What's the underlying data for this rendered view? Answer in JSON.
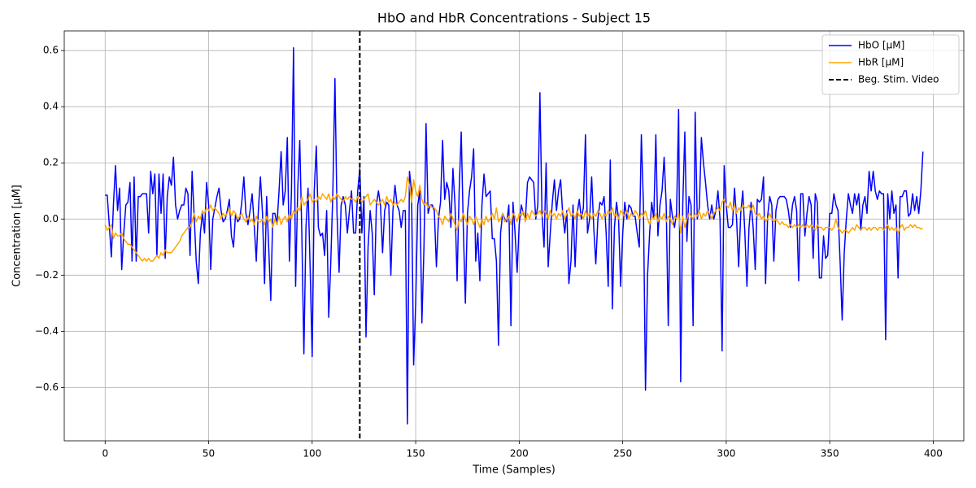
{
  "chart_data": {
    "type": "line",
    "title": "HbO and HbR Concentrations - Subject 15",
    "xlabel": "Time (Samples)",
    "ylabel": "Concentration [μM]",
    "x": [
      0,
      1,
      2,
      3,
      4,
      5,
      6,
      7,
      8,
      9,
      10,
      11,
      12,
      13,
      14,
      15,
      16,
      17,
      18,
      19,
      20,
      21,
      22,
      23,
      24,
      25,
      26,
      27,
      28,
      29,
      30,
      31,
      32,
      33,
      34,
      35,
      36,
      37,
      38,
      39,
      40,
      41,
      42,
      43,
      44,
      45,
      46,
      47,
      48,
      49,
      50,
      51,
      52,
      53,
      54,
      55,
      56,
      57,
      58,
      59,
      60,
      61,
      62,
      63,
      64,
      65,
      66,
      67,
      68,
      69,
      70,
      71,
      72,
      73,
      74,
      75,
      76,
      77,
      78,
      79,
      80,
      81,
      82,
      83,
      84,
      85,
      86,
      87,
      88,
      89,
      90,
      91,
      92,
      93,
      94,
      95,
      96,
      97,
      98,
      99,
      100,
      101,
      102,
      103,
      104,
      105,
      106,
      107,
      108,
      109,
      110,
      111,
      112,
      113,
      114,
      115,
      116,
      117,
      118,
      119,
      120,
      121,
      122,
      123,
      124,
      125,
      126,
      127,
      128,
      129,
      130,
      131,
      132,
      133,
      134,
      135,
      136,
      137,
      138,
      139,
      140,
      141,
      142,
      143,
      144,
      145,
      146,
      147,
      148,
      149,
      150,
      151,
      152,
      153,
      154,
      155,
      156,
      157,
      158,
      159,
      160,
      161,
      162,
      163,
      164,
      165,
      166,
      167,
      168,
      169,
      170,
      171,
      172,
      173,
      174,
      175,
      176,
      177,
      178,
      179,
      180,
      181,
      182,
      183,
      184,
      185,
      186,
      187,
      188,
      189,
      190,
      191,
      192,
      193,
      194,
      195,
      196,
      197,
      198,
      199,
      200,
      201,
      202,
      203,
      204,
      205,
      206,
      207,
      208,
      209,
      210,
      211,
      212,
      213,
      214,
      215,
      216,
      217,
      218,
      219,
      220,
      221,
      222,
      223,
      224,
      225,
      226,
      227,
      228,
      229,
      230,
      231,
      232,
      233,
      234,
      235,
      236,
      237,
      238,
      239,
      240,
      241,
      242,
      243,
      244,
      245,
      246,
      247,
      248,
      249,
      250,
      251,
      252,
      253,
      254,
      255,
      256,
      257,
      258,
      259,
      260,
      261,
      262,
      263,
      264,
      265,
      266,
      267,
      268,
      269,
      270,
      271,
      272,
      273,
      274,
      275,
      276,
      277,
      278,
      279,
      280,
      281,
      282,
      283,
      284,
      285,
      286,
      287,
      288,
      289,
      290,
      291,
      292,
      293,
      294,
      295,
      296,
      297,
      298,
      299,
      300,
      301,
      302,
      303,
      304,
      305,
      306,
      307,
      308,
      309,
      310,
      311,
      312,
      313,
      314,
      315,
      316,
      317,
      318,
      319,
      320,
      321,
      322,
      323,
      324,
      325,
      326,
      327,
      328,
      329,
      330,
      331,
      332,
      333,
      334,
      335,
      336,
      337,
      338,
      339,
      340,
      341,
      342,
      343,
      344,
      345,
      346,
      347,
      348,
      349,
      350,
      351,
      352,
      353,
      354,
      355,
      356,
      357,
      358,
      359,
      360,
      361,
      362,
      363,
      364,
      365,
      366,
      367,
      368,
      369,
      370,
      371,
      372,
      373,
      374,
      375,
      376,
      377,
      378,
      379,
      380,
      381,
      382,
      383,
      384,
      385,
      386,
      387,
      388,
      389,
      390,
      391,
      392,
      393,
      394,
      395
    ],
    "series": [
      {
        "name": "HbO [μM]",
        "color": "#0000ff",
        "values": [
          0.085,
          0.085,
          -0.02,
          -0.135,
          0.05,
          0.19,
          0.03,
          0.11,
          -0.18,
          -0.05,
          0.05,
          0.06,
          0.13,
          -0.15,
          0.15,
          -0.15,
          0.08,
          0.08,
          0.09,
          0.09,
          0.09,
          -0.05,
          0.17,
          0.09,
          0.16,
          -0.13,
          0.16,
          0.02,
          0.16,
          -0.14,
          0.08,
          0.15,
          0.12,
          0.22,
          0.05,
          0.0,
          0.03,
          0.05,
          0.05,
          0.11,
          0.09,
          -0.13,
          0.17,
          0.01,
          -0.15,
          -0.23,
          -0.05,
          0.02,
          -0.05,
          0.13,
          0.05,
          -0.18,
          0.0,
          0.04,
          0.08,
          0.11,
          0.03,
          -0.01,
          0.0,
          0.03,
          0.07,
          -0.06,
          -0.1,
          0.02,
          -0.01,
          0.0,
          0.06,
          0.15,
          0.02,
          -0.02,
          0.03,
          0.09,
          -0.02,
          -0.15,
          0.03,
          0.15,
          0.02,
          -0.23,
          0.08,
          -0.1,
          -0.29,
          0.02,
          0.02,
          -0.02,
          0.1,
          0.24,
          0.05,
          0.1,
          0.29,
          -0.15,
          0.1,
          0.61,
          -0.24,
          0.1,
          0.28,
          -0.05,
          -0.48,
          -0.03,
          0.11,
          -0.17,
          -0.49,
          0.1,
          0.26,
          -0.03,
          -0.06,
          -0.05,
          -0.13,
          0.03,
          -0.35,
          -0.15,
          0.1,
          0.5,
          0.02,
          -0.19,
          0.05,
          0.08,
          0.05,
          -0.05,
          0.03,
          0.1,
          -0.05,
          -0.05,
          0.1,
          0.18,
          -0.05,
          0.08,
          -0.42,
          -0.1,
          0.03,
          -0.05,
          -0.27,
          0.05,
          0.1,
          0.05,
          -0.12,
          0.03,
          0.06,
          0.05,
          -0.2,
          0.03,
          0.12,
          0.05,
          0.03,
          -0.03,
          0.03,
          0.03,
          -0.73,
          0.17,
          0.1,
          -0.52,
          -0.3,
          0.05,
          0.1,
          -0.37,
          -0.1,
          0.34,
          0.02,
          0.05,
          0.05,
          0.03,
          -0.17,
          0.0,
          0.06,
          0.28,
          0.07,
          0.13,
          0.1,
          -0.03,
          0.18,
          0.05,
          -0.22,
          0.1,
          0.31,
          -0.03,
          -0.3,
          0.02,
          0.1,
          0.15,
          0.25,
          -0.15,
          -0.05,
          -0.22,
          0.05,
          0.16,
          0.08,
          0.09,
          0.1,
          -0.07,
          -0.07,
          -0.15,
          -0.45,
          -0.05,
          0.02,
          0.0,
          -0.01,
          0.05,
          -0.38,
          0.06,
          -0.05,
          -0.19,
          -0.02,
          0.05,
          0.02,
          0.0,
          0.13,
          0.15,
          0.14,
          0.13,
          0.0,
          0.05,
          0.45,
          0.02,
          -0.1,
          0.2,
          -0.17,
          -0.05,
          0.06,
          0.14,
          0.03,
          0.1,
          0.14,
          0.02,
          -0.05,
          0.03,
          -0.23,
          -0.15,
          0.05,
          -0.17,
          0.02,
          0.07,
          0.0,
          0.04,
          0.3,
          -0.05,
          0.0,
          0.15,
          -0.03,
          -0.16,
          0.0,
          0.06,
          0.05,
          0.08,
          -0.05,
          -0.24,
          0.21,
          -0.32,
          -0.03,
          0.06,
          0.0,
          -0.24,
          -0.05,
          0.06,
          0.0,
          0.05,
          0.04,
          0.01,
          0.01,
          -0.05,
          -0.1,
          0.3,
          0.05,
          -0.61,
          -0.2,
          -0.05,
          0.06,
          0.0,
          0.3,
          -0.06,
          0.05,
          0.1,
          0.22,
          0.05,
          -0.38,
          0.07,
          0.01,
          -0.03,
          0.02,
          0.39,
          -0.58,
          0.05,
          0.31,
          -0.08,
          0.08,
          0.05,
          -0.38,
          0.38,
          0.0,
          0.04,
          0.29,
          0.2,
          0.13,
          0.05,
          0.0,
          0.05,
          0.0,
          0.03,
          0.1,
          0.0,
          -0.47,
          0.19,
          0.05,
          -0.03,
          -0.03,
          -0.02,
          0.11,
          0.0,
          -0.17,
          0.02,
          0.1,
          -0.05,
          -0.24,
          -0.03,
          0.06,
          -0.03,
          -0.18,
          0.07,
          0.06,
          0.07,
          0.15,
          -0.23,
          0.01,
          0.08,
          0.05,
          -0.15,
          0.03,
          0.07,
          0.08,
          0.08,
          0.08,
          0.07,
          0.03,
          -0.03,
          0.05,
          0.08,
          0.03,
          -0.22,
          0.09,
          0.09,
          -0.06,
          0.02,
          0.08,
          0.05,
          -0.14,
          0.09,
          0.06,
          -0.21,
          -0.21,
          -0.06,
          -0.14,
          -0.13,
          0.02,
          0.02,
          0.09,
          0.05,
          0.03,
          -0.15,
          -0.36,
          -0.12,
          0.0,
          0.09,
          0.05,
          0.02,
          0.09,
          0.05,
          0.09,
          -0.04,
          0.05,
          0.08,
          0.02,
          0.17,
          0.1,
          0.17,
          0.1,
          0.07,
          0.1,
          0.09,
          0.09,
          -0.43,
          0.09,
          0.0,
          0.1,
          0.02,
          0.05,
          -0.21,
          0.08,
          0.08,
          0.1,
          0.1,
          0.01,
          0.02,
          0.09,
          0.03,
          0.08,
          0.02,
          0.1,
          0.24
        ]
      },
      {
        "name": "HbR [μM]",
        "color": "#ffa500",
        "values": [
          -0.02,
          -0.04,
          -0.03,
          -0.02,
          -0.07,
          -0.05,
          -0.06,
          -0.06,
          -0.05,
          -0.07,
          -0.08,
          -0.09,
          -0.09,
          -0.1,
          -0.11,
          -0.12,
          -0.13,
          -0.14,
          -0.15,
          -0.14,
          -0.15,
          -0.14,
          -0.15,
          -0.15,
          -0.14,
          -0.13,
          -0.14,
          -0.12,
          -0.13,
          -0.11,
          -0.12,
          -0.12,
          -0.12,
          -0.11,
          -0.1,
          -0.09,
          -0.08,
          -0.06,
          -0.05,
          -0.04,
          -0.03,
          -0.03,
          -0.01,
          0.02,
          -0.01,
          0.01,
          0.0,
          0.03,
          0.02,
          0.04,
          0.03,
          0.05,
          0.03,
          0.04,
          0.03,
          0.02,
          0.0,
          0.02,
          0.01,
          0.02,
          0.04,
          0.01,
          0.03,
          0.02,
          0.0,
          0.01,
          0.02,
          0.0,
          -0.01,
          0.01,
          -0.01,
          0.0,
          -0.02,
          0.01,
          -0.01,
          -0.01,
          0.0,
          -0.02,
          0.01,
          -0.01,
          0.0,
          -0.03,
          0.0,
          -0.02,
          0.01,
          -0.02,
          0.0,
          0.01,
          -0.01,
          0.02,
          0.0,
          0.03,
          0.02,
          0.04,
          0.03,
          0.08,
          0.05,
          0.06,
          0.07,
          0.09,
          0.06,
          0.07,
          0.06,
          0.08,
          0.07,
          0.09,
          0.08,
          0.07,
          0.09,
          0.06,
          0.08,
          0.07,
          0.09,
          0.08,
          0.07,
          0.06,
          0.08,
          0.07,
          0.08,
          0.07,
          0.07,
          0.06,
          0.08,
          0.07,
          0.06,
          0.07,
          0.08,
          0.09,
          0.05,
          0.06,
          0.07,
          0.06,
          0.05,
          0.06,
          0.07,
          0.05,
          0.08,
          0.06,
          0.07,
          0.05,
          0.06,
          0.05,
          0.06,
          0.07,
          0.06,
          0.08,
          0.15,
          0.12,
          0.06,
          0.14,
          0.1,
          0.08,
          0.12,
          0.07,
          0.05,
          0.06,
          0.04,
          0.05,
          0.04,
          0.04,
          0.03,
          0.01,
          0.0,
          -0.02,
          0.01,
          0.0,
          -0.01,
          0.02,
          0.0,
          -0.02,
          -0.04,
          0.0,
          -0.01,
          0.02,
          0.0,
          -0.02,
          0.01,
          0.0,
          -0.02,
          0.01,
          -0.01,
          -0.03,
          0.0,
          -0.02,
          0.01,
          -0.01,
          0.0,
          0.02,
          0.0,
          0.04,
          -0.01,
          0.0,
          0.02,
          -0.01,
          0.0,
          0.01,
          -0.02,
          0.02,
          0.01,
          -0.01,
          0.02,
          0.01,
          0.03,
          -0.01,
          0.02,
          0.0,
          0.03,
          0.02,
          0.01,
          0.02,
          0.03,
          0.01,
          0.03,
          0.02,
          0.0,
          0.03,
          0.01,
          0.02,
          0.0,
          0.02,
          0.01,
          0.03,
          0.0,
          0.02,
          0.04,
          0.01,
          0.02,
          0.0,
          0.03,
          0.01,
          0.02,
          0.0,
          0.03,
          0.01,
          0.02,
          0.0,
          0.02,
          0.01,
          0.03,
          0.02,
          0.0,
          0.02,
          0.01,
          0.03,
          0.02,
          0.04,
          0.01,
          0.02,
          0.0,
          0.03,
          0.02,
          0.01,
          0.03,
          0.0,
          0.02,
          0.01,
          0.03,
          0.02,
          0.0,
          0.02,
          0.01,
          0.03,
          0.0,
          -0.02,
          0.01,
          0.0,
          0.02,
          -0.01,
          0.01,
          0.0,
          0.02,
          -0.01,
          0.01,
          0.0,
          -0.02,
          0.01,
          0.0,
          0.02,
          -0.05,
          0.01,
          -0.03,
          0.0,
          0.02,
          0.01,
          0.0,
          0.02,
          0.01,
          0.03,
          0.0,
          0.02,
          0.01,
          0.03,
          0.02,
          0.0,
          0.02,
          0.03,
          0.04,
          0.03,
          0.06,
          0.07,
          0.05,
          0.04,
          0.06,
          0.03,
          0.05,
          0.02,
          0.04,
          0.03,
          0.05,
          0.04,
          0.04,
          0.05,
          0.03,
          0.05,
          0.02,
          0.01,
          0.02,
          0.0,
          0.01,
          -0.01,
          0.0,
          0.02,
          0.0,
          -0.01,
          0.0,
          -0.01,
          -0.02,
          -0.01,
          -0.02,
          -0.02,
          -0.03,
          -0.02,
          -0.03,
          -0.02,
          -0.03,
          -0.02,
          -0.03,
          -0.02,
          -0.03,
          -0.02,
          -0.03,
          -0.02,
          -0.03,
          -0.04,
          -0.02,
          -0.03,
          -0.03,
          -0.04,
          -0.03,
          -0.03,
          -0.03,
          -0.04,
          -0.03,
          0.0,
          -0.03,
          -0.04,
          -0.05,
          -0.04,
          -0.04,
          -0.05,
          -0.04,
          -0.03,
          -0.04,
          -0.02,
          -0.03,
          -0.04,
          -0.03,
          -0.03,
          -0.04,
          -0.03,
          -0.04,
          -0.03,
          -0.03,
          -0.04,
          -0.03,
          -0.03,
          -0.04,
          -0.03,
          -0.02,
          -0.04,
          -0.03,
          -0.04,
          -0.03,
          -0.05,
          -0.03,
          -0.02,
          -0.04,
          -0.03,
          -0.03,
          -0.02,
          -0.03,
          -0.02,
          -0.03,
          -0.03,
          -0.035,
          -0.035
        ]
      }
    ],
    "vlines": [
      {
        "name": "Beg. Stim. Video",
        "x": 123,
        "color": "#000000",
        "dash": true
      }
    ],
    "xlim": [
      -19.75,
      414.75
    ],
    "ylim": [
      -0.79,
      0.67
    ],
    "xticks": [
      0,
      50,
      100,
      150,
      200,
      250,
      300,
      350,
      400
    ],
    "yticks": [
      {
        "value": -0.6,
        "label": "−0.6"
      },
      {
        "value": -0.4,
        "label": "−0.4"
      },
      {
        "value": -0.2,
        "label": "−0.2"
      },
      {
        "value": 0,
        "label": "0.0"
      },
      0.2,
      0.4,
      0.6
    ],
    "grid": true,
    "legend": "upper right"
  }
}
